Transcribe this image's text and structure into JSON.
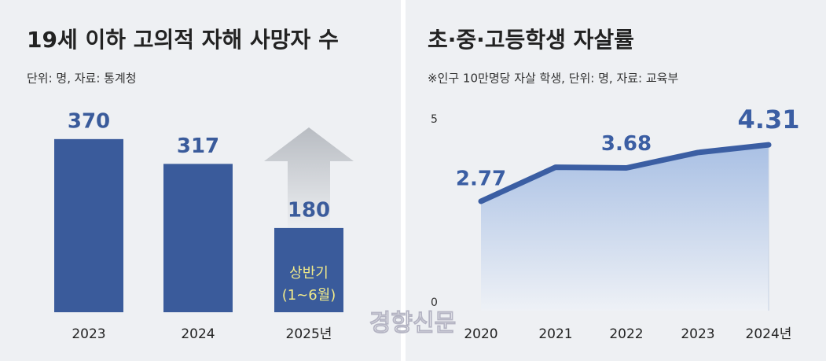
{
  "chart_data": [
    {
      "type": "bar",
      "title": "19세 이하 고의적 자해 사망자 수",
      "subtitle": "단위: 명, 자료: 통계청",
      "categories": [
        "2023",
        "2024",
        "2025년"
      ],
      "values": [
        370,
        317,
        180
      ],
      "color": "#3a5b9b",
      "annotation": [
        "상반기",
        "(1~6월)"
      ]
    },
    {
      "type": "line",
      "title": "초·중·고등학생 자살률",
      "subtitle": "※인구 10만명당 자살 학생, 단위: 명, 자료: 교육부",
      "x": [
        "2020",
        "2021",
        "2022",
        "2023",
        "2024년"
      ],
      "values": [
        2.77,
        3.7,
        3.68,
        4.1,
        4.31
      ],
      "value_labels": [
        "2.77",
        null,
        "3.68",
        null,
        "4.31"
      ],
      "color": "#3b5ea3",
      "ylim": [
        0,
        5
      ],
      "yticks": [
        0,
        5
      ]
    }
  ],
  "watermark": "경향신문"
}
